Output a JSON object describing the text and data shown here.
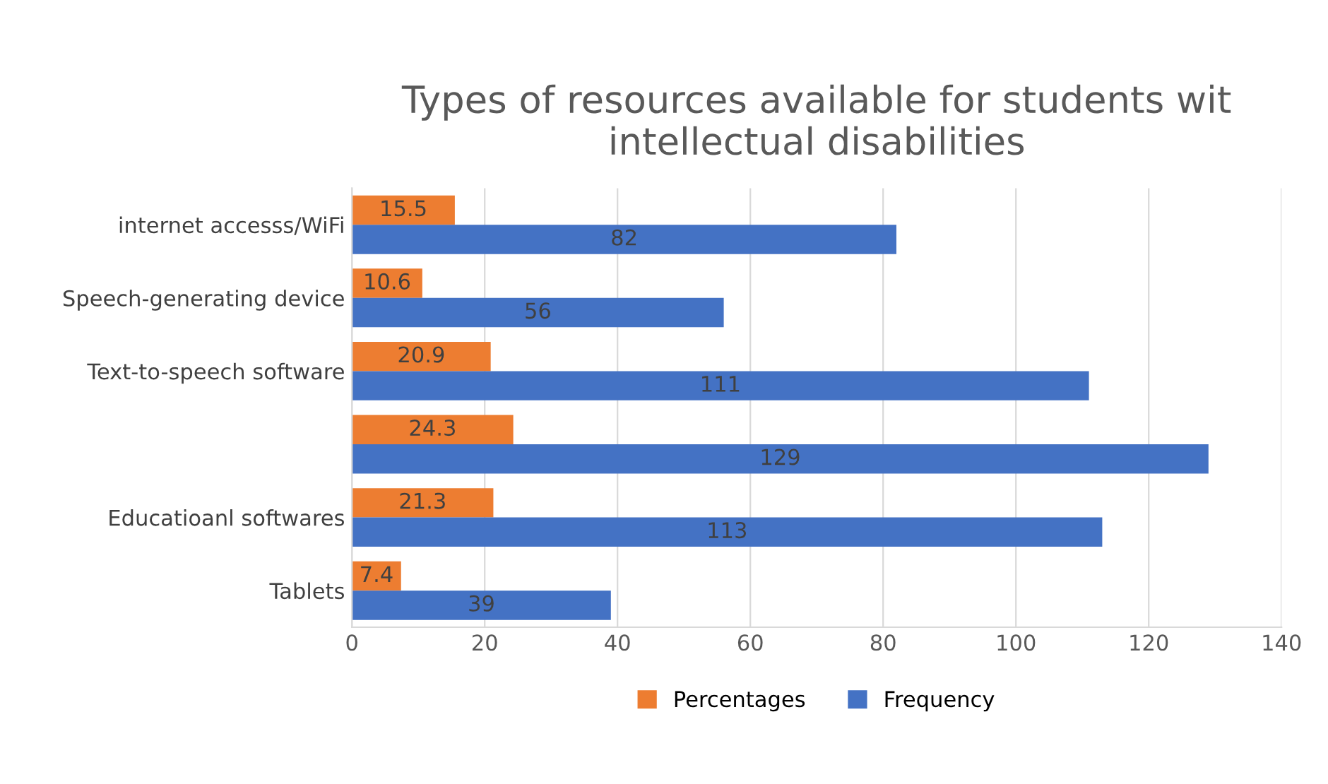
{
  "chart_data": {
    "type": "bar",
    "orientation": "horizontal",
    "title": "Types of resources available for students wit intellectual disabilities",
    "categories": [
      "internet accesss/WiFi",
      "Speech-generating device",
      "Text-to-speech software",
      null,
      "Educatioanl softwares",
      "Tablets"
    ],
    "series": [
      {
        "name": "Percentages",
        "color": "#ed7d31",
        "values": [
          15.5,
          10.6,
          20.9,
          24.3,
          21.3,
          7.4
        ]
      },
      {
        "name": "Frequency",
        "color": "#4472c4",
        "values": [
          82,
          56,
          111,
          129,
          113,
          39
        ]
      }
    ],
    "xlim": [
      0,
      140
    ],
    "xticks": [
      0,
      20,
      40,
      60,
      80,
      100,
      120,
      140
    ],
    "grid": "x",
    "legend": "bottom",
    "data_labels": true
  }
}
